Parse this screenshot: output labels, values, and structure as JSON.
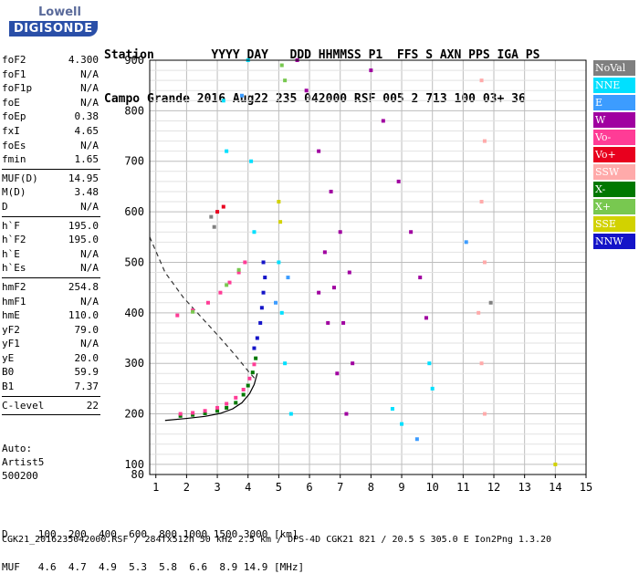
{
  "logo": {
    "line1": "Lowell",
    "line2": "DIGISONDE"
  },
  "header": {
    "line1": "Station        YYYY DAY   DDD HHMMSS P1  FFS S AXN PPS IGA PS",
    "line2": "Campo Grande 2016 Aug22 235 042000 RSF 005 2 713 100 03+ 36"
  },
  "params": {
    "g1": [
      {
        "k": "foF2",
        "v": "4.300"
      },
      {
        "k": "foF1",
        "v": "N/A"
      },
      {
        "k": "foF1p",
        "v": "N/A"
      },
      {
        "k": "foE",
        "v": "N/A"
      },
      {
        "k": "foEp",
        "v": "0.38"
      },
      {
        "k": "fxI",
        "v": "4.65"
      },
      {
        "k": "foEs",
        "v": "N/A"
      },
      {
        "k": "fmin",
        "v": "1.65"
      }
    ],
    "g2": [
      {
        "k": "MUF(D)",
        "v": "14.95"
      },
      {
        "k": "M(D)",
        "v": "3.48"
      },
      {
        "k": "D",
        "v": "N/A"
      }
    ],
    "g3": [
      {
        "k": "h`F",
        "v": "195.0"
      },
      {
        "k": "h`F2",
        "v": "195.0"
      },
      {
        "k": "h`E",
        "v": "N/A"
      },
      {
        "k": "h`Es",
        "v": "N/A"
      }
    ],
    "g4": [
      {
        "k": "hmF2",
        "v": "254.8"
      },
      {
        "k": "hmF1",
        "v": "N/A"
      },
      {
        "k": "hmE",
        "v": "110.0"
      },
      {
        "k": "yF2",
        "v": "79.0"
      },
      {
        "k": "yF1",
        "v": "N/A"
      },
      {
        "k": "yE",
        "v": "20.0"
      },
      {
        "k": "B0",
        "v": "59.9"
      },
      {
        "k": "B1",
        "v": "7.37"
      }
    ],
    "g5": [
      {
        "k": "C-level",
        "v": "22"
      }
    ]
  },
  "auto": {
    "line1": "Auto:",
    "line2": "Artist5",
    "line3": "500200"
  },
  "dmuf": {
    "line1": "D     100  200  400  600  800 1000 1500 3000 [km]",
    "line2": "MUF   4.6  4.7  4.9  5.3  5.8  6.6  8.9 14.9 [MHz]"
  },
  "footer": "CGK21_2016235042000.RSF / 284fx512h 50 kHz 2.5 km / DPS-4D CGK21 821 / 20.5 S 305.0 E Ion2Png 1.3.20",
  "legend": [
    {
      "label": "NoVal",
      "color": "#7f7f7f"
    },
    {
      "label": "NNE",
      "color": "#00e0ff"
    },
    {
      "label": "E",
      "color": "#3c9cff"
    },
    {
      "label": "W",
      "color": "#a000a0"
    },
    {
      "label": "Vo-",
      "color": "#ff3c96"
    },
    {
      "label": "Vo+",
      "color": "#e8001e"
    },
    {
      "label": "SSW",
      "color": "#ffaaaa"
    },
    {
      "label": "X-",
      "color": "#007800"
    },
    {
      "label": "X+",
      "color": "#78c850"
    },
    {
      "label": "SSE",
      "color": "#d2d200"
    },
    {
      "label": "NNW",
      "color": "#1414c8"
    }
  ],
  "chart_data": {
    "type": "scatter",
    "title": "",
    "xlabel": "",
    "ylabel": "",
    "xlim": [
      0.8,
      15
    ],
    "ylim": [
      80,
      900
    ],
    "xticks": [
      "1",
      "2",
      "3",
      "4",
      "5",
      "6",
      "7",
      "8",
      "9",
      "10",
      "11",
      "12",
      "13",
      "14",
      "15"
    ],
    "yticks": [
      "100",
      "200",
      "300",
      "400",
      "500",
      "600",
      "700",
      "800",
      "900"
    ],
    "grid": true,
    "legend_position": "right",
    "series": [
      {
        "name": "X-",
        "color": "#007800",
        "points": [
          [
            1.8,
            196
          ],
          [
            2.2,
            198
          ],
          [
            2.6,
            201
          ],
          [
            3.0,
            206
          ],
          [
            3.3,
            212
          ],
          [
            3.6,
            222
          ],
          [
            3.85,
            238
          ],
          [
            4.0,
            256
          ],
          [
            4.15,
            282
          ],
          [
            4.25,
            310
          ]
        ]
      },
      {
        "name": "Vo-",
        "color": "#ff3c96",
        "points": [
          [
            1.8,
            200
          ],
          [
            2.2,
            202
          ],
          [
            2.6,
            206
          ],
          [
            3.0,
            212
          ],
          [
            3.3,
            220
          ],
          [
            3.6,
            232
          ],
          [
            3.85,
            248
          ],
          [
            4.05,
            270
          ],
          [
            4.2,
            298
          ],
          [
            1.7,
            395
          ],
          [
            2.2,
            405
          ],
          [
            2.7,
            420
          ],
          [
            3.1,
            440
          ],
          [
            3.4,
            460
          ],
          [
            3.7,
            480
          ],
          [
            3.9,
            500
          ]
        ]
      },
      {
        "name": "NNW",
        "color": "#1414c8",
        "points": [
          [
            4.2,
            330
          ],
          [
            4.3,
            350
          ],
          [
            4.4,
            380
          ],
          [
            4.45,
            410
          ],
          [
            4.5,
            440
          ],
          [
            4.55,
            470
          ],
          [
            4.5,
            500
          ]
        ]
      },
      {
        "name": "W",
        "color": "#a000a0",
        "points": [
          [
            5.6,
            900
          ],
          [
            5.9,
            840
          ],
          [
            6.3,
            720
          ],
          [
            6.7,
            640
          ],
          [
            7.0,
            560
          ],
          [
            7.3,
            480
          ],
          [
            6.5,
            520
          ],
          [
            6.8,
            450
          ],
          [
            7.1,
            380
          ],
          [
            7.4,
            300
          ],
          [
            8.0,
            880
          ],
          [
            8.4,
            780
          ],
          [
            8.9,
            660
          ],
          [
            9.3,
            560
          ],
          [
            9.6,
            470
          ],
          [
            9.8,
            390
          ],
          [
            6.3,
            440
          ],
          [
            6.6,
            380
          ],
          [
            6.9,
            280
          ],
          [
            7.2,
            200
          ]
        ]
      },
      {
        "name": "NNE",
        "color": "#00e0ff",
        "points": [
          [
            4.0,
            900
          ],
          [
            4.1,
            700
          ],
          [
            4.2,
            560
          ],
          [
            5.0,
            500
          ],
          [
            5.1,
            400
          ],
          [
            5.2,
            300
          ],
          [
            5.4,
            200
          ],
          [
            9.9,
            300
          ],
          [
            10.0,
            250
          ],
          [
            3.2,
            820
          ],
          [
            3.3,
            720
          ],
          [
            8.7,
            210
          ],
          [
            9.0,
            180
          ]
        ]
      },
      {
        "name": "SSW",
        "color": "#ffaaaa",
        "points": [
          [
            11.6,
            860
          ],
          [
            11.7,
            740
          ],
          [
            11.6,
            620
          ],
          [
            11.7,
            500
          ],
          [
            11.5,
            400
          ],
          [
            11.6,
            300
          ],
          [
            11.7,
            200
          ]
        ]
      },
      {
        "name": "X+",
        "color": "#78c850",
        "points": [
          [
            5.1,
            890
          ],
          [
            5.2,
            860
          ],
          [
            2.2,
            402
          ],
          [
            3.3,
            455
          ],
          [
            3.7,
            485
          ]
        ]
      },
      {
        "name": "SSE",
        "color": "#d2d200",
        "points": [
          [
            5.0,
            620
          ],
          [
            5.05,
            580
          ],
          [
            14.0,
            100
          ]
        ]
      },
      {
        "name": "E",
        "color": "#3c9cff",
        "points": [
          [
            3.8,
            830
          ],
          [
            4.9,
            420
          ],
          [
            5.3,
            470
          ],
          [
            9.5,
            150
          ],
          [
            11.1,
            540
          ]
        ]
      },
      {
        "name": "Vo+",
        "color": "#e8001e",
        "points": [
          [
            3.0,
            600
          ],
          [
            3.2,
            610
          ]
        ]
      },
      {
        "name": "NoVal",
        "color": "#7f7f7f",
        "points": [
          [
            2.8,
            590
          ],
          [
            2.9,
            570
          ],
          [
            11.9,
            420
          ]
        ]
      }
    ]
  }
}
